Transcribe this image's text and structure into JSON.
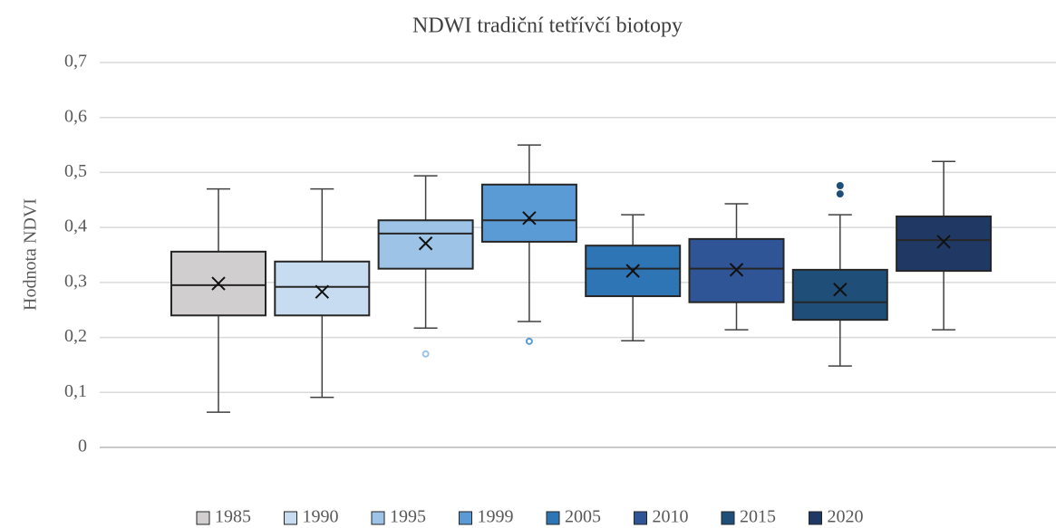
{
  "chart_data": {
    "type": "box",
    "title": "NDWI tradiční tetřívčí biotopy",
    "y_label": "Hodnota NDVI",
    "ylim": [
      0,
      0.7
    ],
    "yticks": [
      0,
      {
        "value": 0.1,
        "label": "0,1"
      },
      {
        "value": 0.2,
        "label": "0,2"
      },
      {
        "value": 0.3,
        "label": "0,3"
      },
      {
        "value": 0.4,
        "label": "0,4"
      },
      {
        "value": 0.5,
        "label": "0,5"
      },
      {
        "value": 0.6,
        "label": "0,6"
      },
      {
        "value": 0.7,
        "label": "0,7"
      }
    ],
    "grid": true,
    "legend": "bottom",
    "series": [
      {
        "name": "1985",
        "color": "#d0cece",
        "min": 0.064,
        "q1": 0.24,
        "median": 0.295,
        "q3": 0.356,
        "max": 0.47,
        "mean": 0.298,
        "outliers": []
      },
      {
        "name": "1990",
        "color": "#c7dcf0",
        "min": 0.091,
        "q1": 0.24,
        "median": 0.292,
        "q3": 0.338,
        "max": 0.47,
        "mean": 0.283,
        "outliers": []
      },
      {
        "name": "1995",
        "color": "#9dc3e6",
        "min": 0.217,
        "q1": 0.325,
        "median": 0.389,
        "q3": 0.413,
        "max": 0.494,
        "mean": 0.371,
        "outliers": [
          0.17
        ]
      },
      {
        "name": "1999",
        "color": "#5b9bd5",
        "min": 0.229,
        "q1": 0.374,
        "median": 0.413,
        "q3": 0.478,
        "max": 0.55,
        "mean": 0.417,
        "outliers": [
          0.193
        ]
      },
      {
        "name": "2005",
        "color": "#2e75b6",
        "min": 0.194,
        "q1": 0.275,
        "median": 0.325,
        "q3": 0.367,
        "max": 0.423,
        "mean": 0.321,
        "outliers": []
      },
      {
        "name": "2010",
        "color": "#2f5597",
        "min": 0.214,
        "q1": 0.264,
        "median": 0.325,
        "q3": 0.379,
        "max": 0.443,
        "mean": 0.323,
        "outliers": []
      },
      {
        "name": "2015",
        "color": "#1f4e79",
        "min": 0.148,
        "q1": 0.232,
        "median": 0.264,
        "q3": 0.323,
        "max": 0.423,
        "mean": 0.287,
        "outliers": [
          0.476,
          0.461
        ]
      },
      {
        "name": "2020",
        "color": "#203864",
        "min": 0.214,
        "q1": 0.321,
        "median": 0.377,
        "q3": 0.42,
        "max": 0.52,
        "mean": 0.374,
        "outliers": []
      }
    ]
  }
}
